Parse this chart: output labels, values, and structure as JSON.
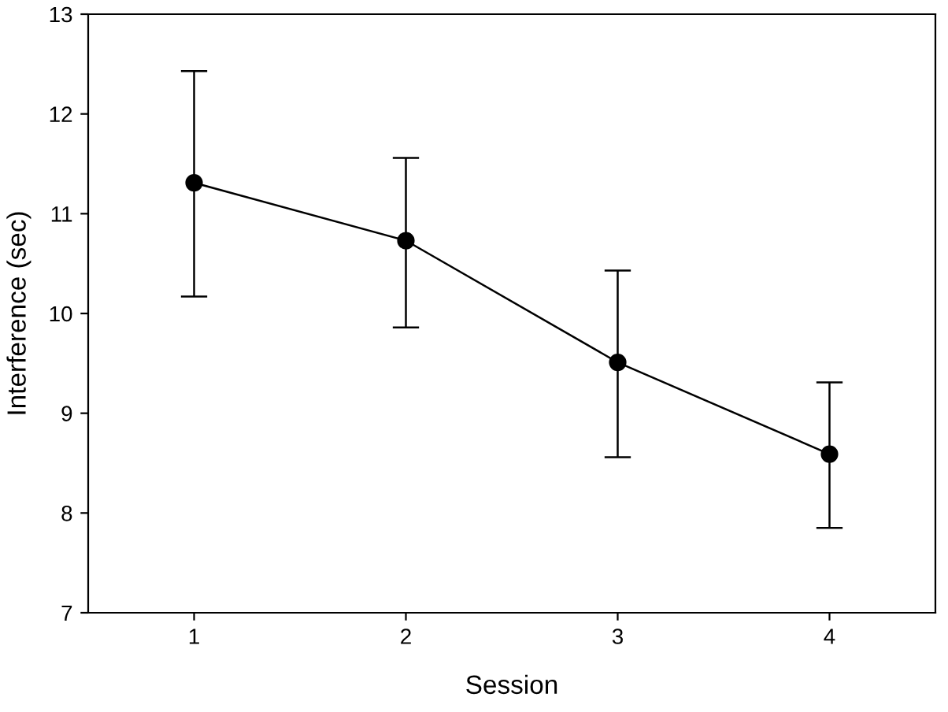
{
  "chart_data": {
    "type": "line",
    "xlabel": "Session",
    "ylabel": "Interference (sec)",
    "x": [
      1,
      2,
      3,
      4
    ],
    "series": [
      {
        "color": "#000000",
        "values": [
          11.31,
          10.73,
          9.51,
          8.59
        ],
        "errors": [
          [
            10.17,
            12.43
          ],
          [
            9.86,
            11.56
          ],
          [
            8.56,
            10.43
          ],
          [
            7.85,
            9.31
          ]
        ]
      }
    ],
    "xlim": [
      0.5,
      4.5
    ],
    "xticks": [
      1,
      2,
      3,
      4
    ],
    "ylim": [
      7,
      13
    ],
    "yticks": [
      7,
      8,
      9,
      10,
      11,
      12,
      13
    ],
    "grid": false,
    "legend": false,
    "marker": "circle",
    "line_style": "solid"
  }
}
